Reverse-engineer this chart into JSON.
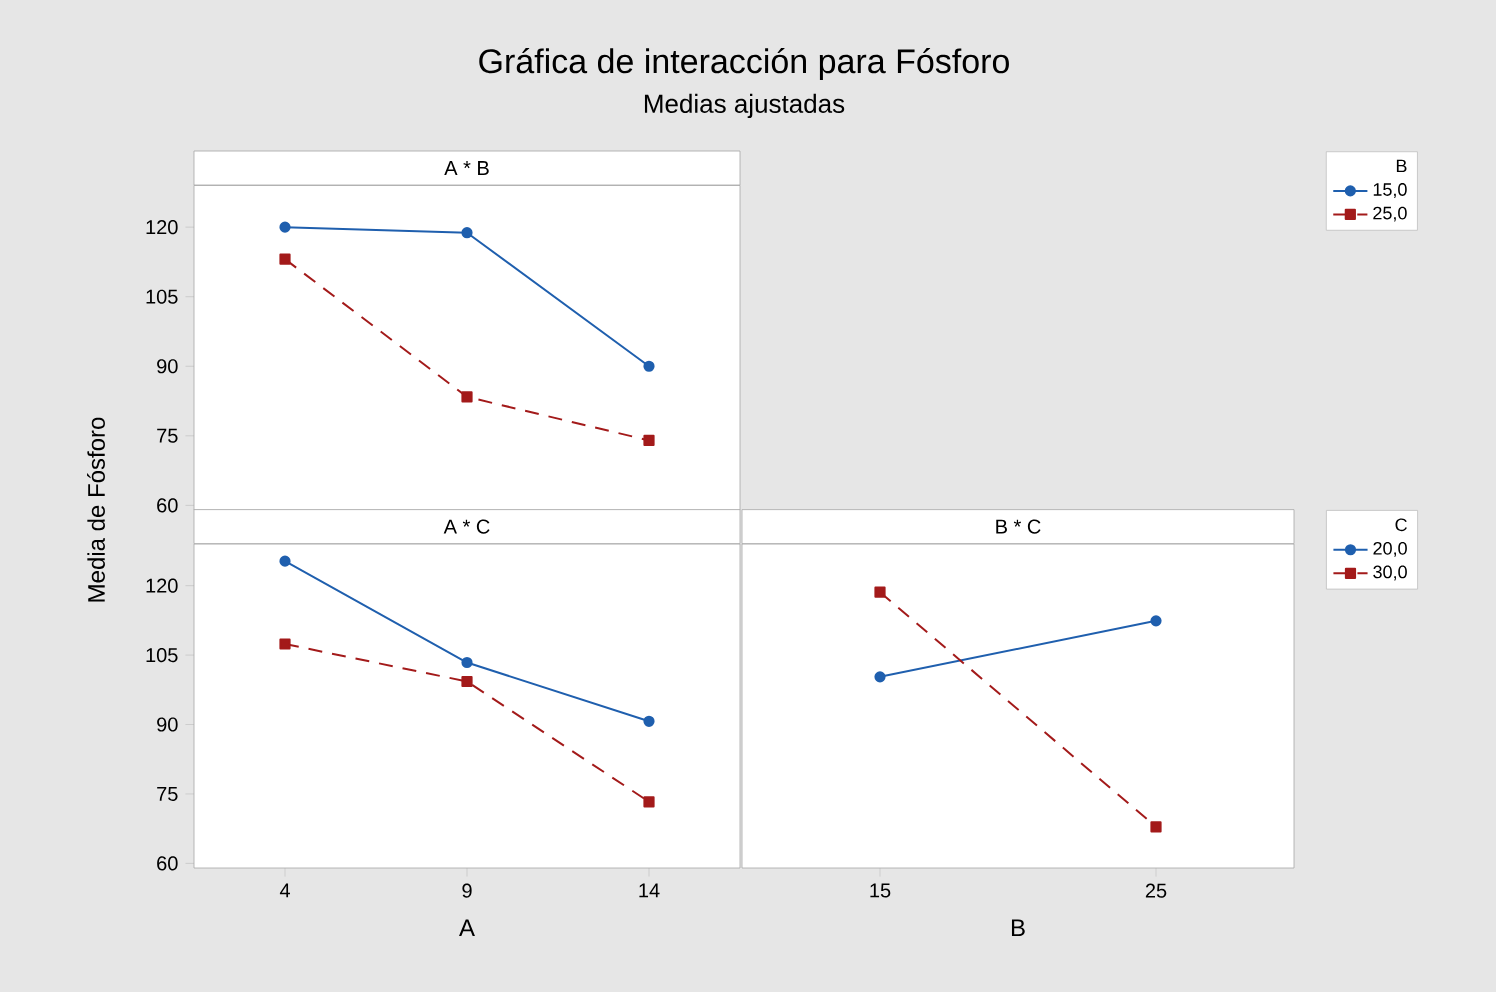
{
  "chart_data": [
    {
      "type": "line",
      "title": "A * B",
      "ylabel": "Media de Fósforo",
      "annotations": [
        "Gráfica de interacción para Fósforo",
        "Medias ajustadas"
      ],
      "x": [
        4,
        9,
        14
      ],
      "xlim": [
        1.5,
        16.5
      ],
      "ylim": [
        59,
        129
      ],
      "yticks": [
        60,
        75,
        90,
        105,
        120
      ],
      "tick_labels": "y",
      "grid": false,
      "legend": "right",
      "legend_title": "B",
      "series": [
        {
          "name": "15,0",
          "color": "#1f5fae",
          "values": [
            120,
            118.8,
            90
          ],
          "marker": "circle",
          "line_style": "solid"
        },
        {
          "name": "25,0",
          "color": "#a31a1a",
          "values": [
            113.1,
            83.4,
            74
          ],
          "marker": "square",
          "line_style": "dashed"
        }
      ]
    },
    {
      "type": "line",
      "title": "A * C",
      "xlabel": "A",
      "x": [
        4,
        9,
        14
      ],
      "xlim": [
        1.5,
        16.5
      ],
      "xticks": [
        4,
        9,
        14
      ],
      "ylim": [
        59,
        129
      ],
      "yticks": [
        60,
        75,
        90,
        105,
        120
      ],
      "grid": false,
      "legend": false,
      "series": [
        {
          "color": "#1f5fae",
          "values": [
            125.3,
            103.4,
            90.7
          ],
          "marker": "circle",
          "line_style": "solid"
        },
        {
          "color": "#a31a1a",
          "values": [
            107.4,
            99.3,
            73.3
          ],
          "marker": "square",
          "line_style": "dashed"
        }
      ]
    },
    {
      "type": "line",
      "title": "B * C",
      "xlabel": "B",
      "x": [
        15,
        25
      ],
      "xlim": [
        10,
        30
      ],
      "xticks": [
        15,
        25
      ],
      "ylim": [
        59,
        129
      ],
      "tick_labels": "x",
      "grid": false,
      "legend": "right",
      "legend_title": "C",
      "series": [
        {
          "name": "20,0",
          "color": "#1f5fae",
          "values": [
            100.3,
            112.4
          ],
          "marker": "circle",
          "line_style": "solid"
        },
        {
          "name": "30,0",
          "color": "#a31a1a",
          "values": [
            118.6,
            67.9
          ],
          "marker": "square",
          "line_style": "dashed"
        }
      ]
    }
  ]
}
